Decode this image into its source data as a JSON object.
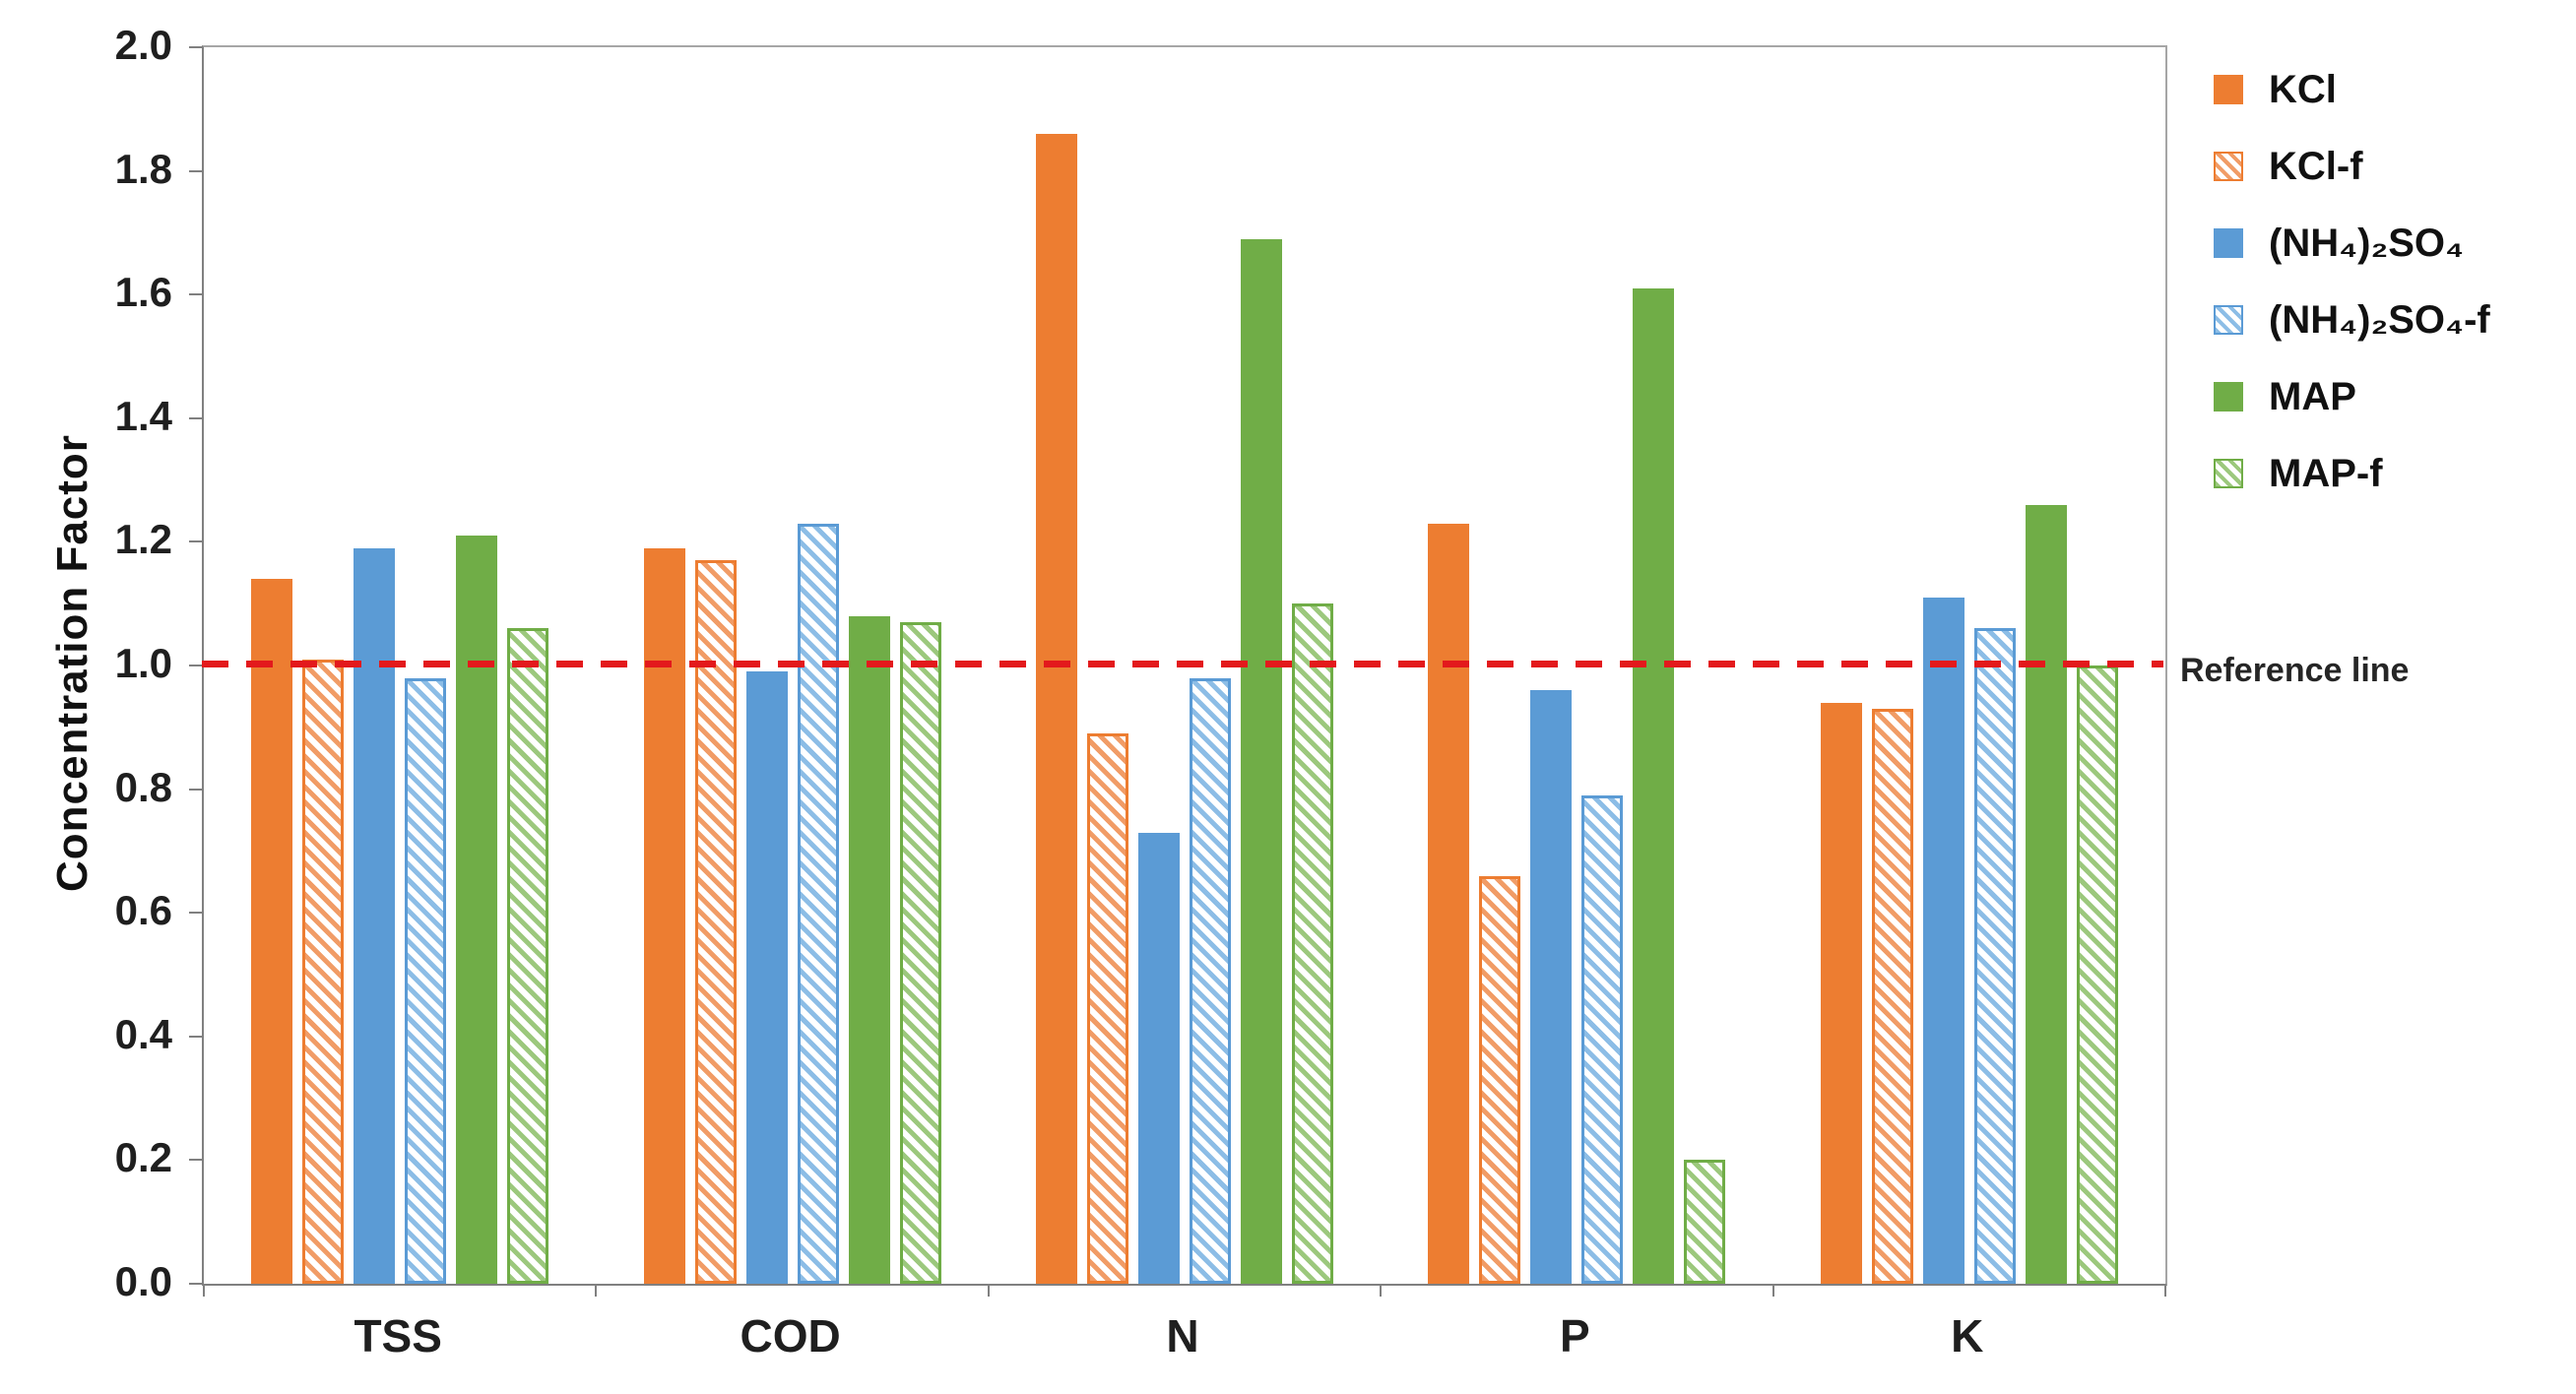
{
  "chart_data": {
    "type": "bar",
    "title": "",
    "ylabel": "Concentration Factor",
    "xlabel": "",
    "categories": [
      "TSS",
      "COD",
      "N",
      "P",
      "K"
    ],
    "series": [
      {
        "name": "KCl",
        "fill": "solid",
        "color": "#ED7D31",
        "stripe": "#f19c66",
        "values": [
          1.14,
          1.19,
          1.86,
          1.23,
          0.94
        ]
      },
      {
        "name": "KCl-f",
        "fill": "hatch",
        "color": "#ED7D31",
        "stripe": "#f19c66",
        "values": [
          1.01,
          1.17,
          0.89,
          0.66,
          0.93
        ]
      },
      {
        "name": "(NH₄)₂SO₄",
        "fill": "solid",
        "color": "#5B9BD5",
        "stripe": "#8cbde6",
        "values": [
          1.19,
          0.99,
          0.73,
          0.96,
          1.11
        ]
      },
      {
        "name": "(NH₄)₂SO₄-f",
        "fill": "hatch",
        "color": "#5B9BD5",
        "stripe": "#8cbde6",
        "values": [
          0.98,
          1.23,
          0.98,
          0.79,
          1.06
        ]
      },
      {
        "name": "MAP",
        "fill": "solid",
        "color": "#70AD47",
        "stripe": "#9cc87d",
        "values": [
          1.21,
          1.08,
          1.69,
          1.61,
          1.26
        ]
      },
      {
        "name": "MAP-f",
        "fill": "hatch",
        "color": "#70AD47",
        "stripe": "#9cc87d",
        "values": [
          1.06,
          1.07,
          1.1,
          0.2,
          1.0
        ]
      }
    ],
    "ylim": [
      0.0,
      2.0
    ],
    "ytick_labels": [
      "0.0",
      "0.2",
      "0.4",
      "0.6",
      "0.8",
      "1.0",
      "1.2",
      "1.4",
      "1.6",
      "1.8",
      "2.0"
    ],
    "grid": false,
    "legend_position": "right",
    "reference_line": {
      "value": 1.0,
      "label": "Reference line",
      "color": "#E3191C"
    },
    "axis_color": "#808080"
  }
}
